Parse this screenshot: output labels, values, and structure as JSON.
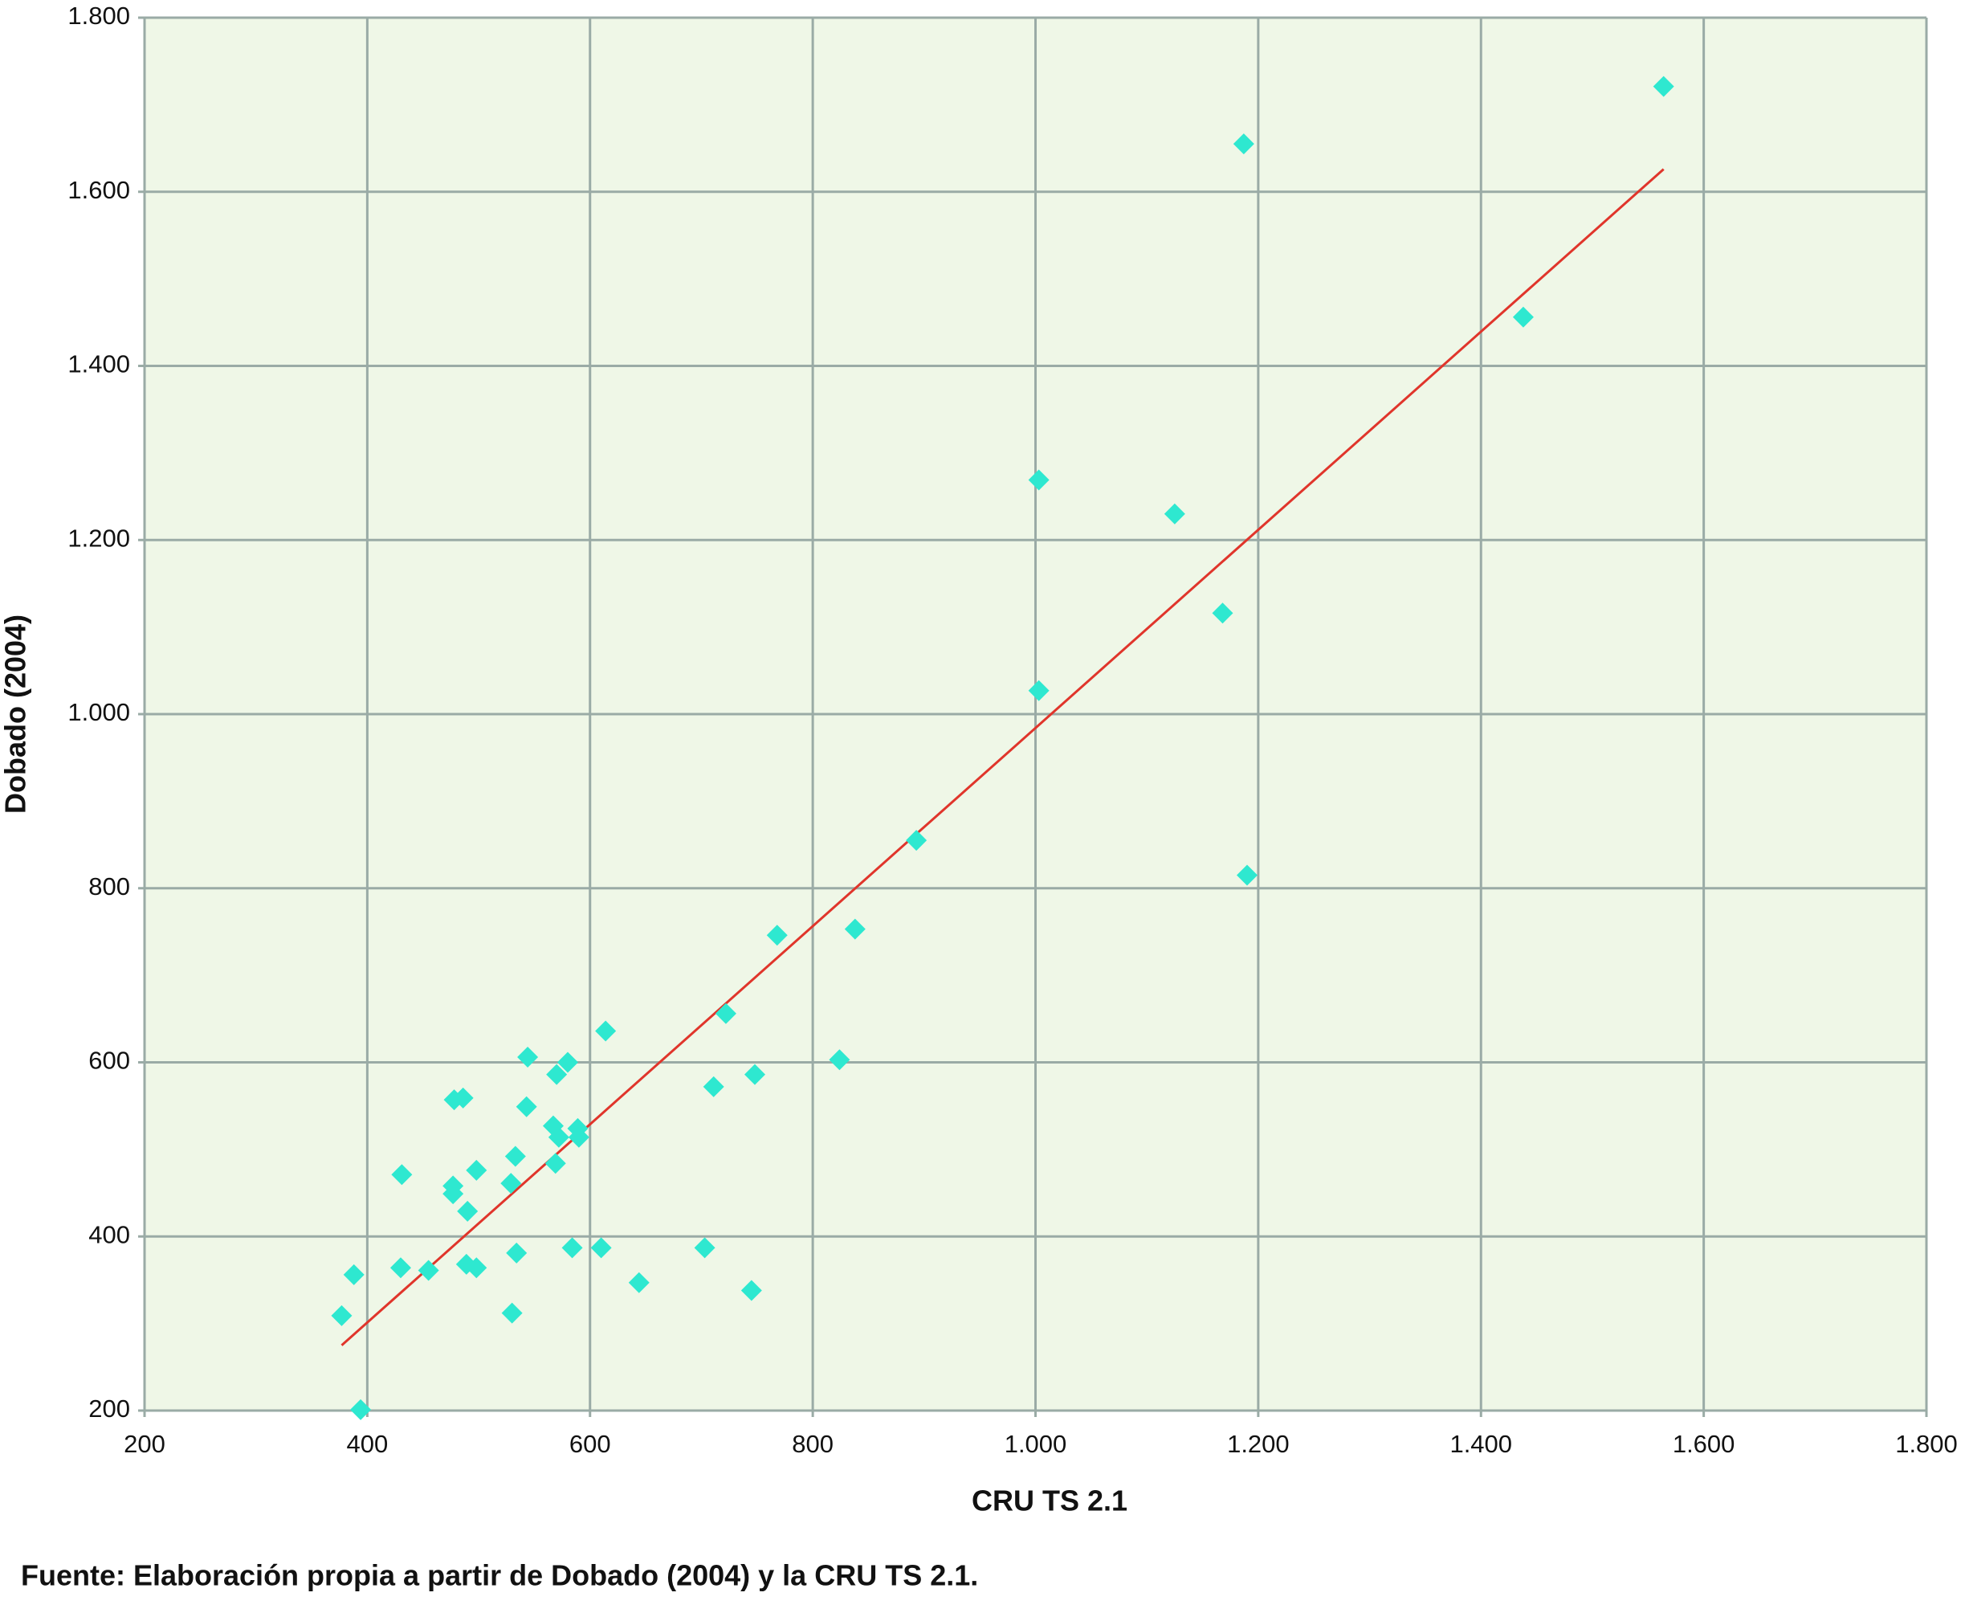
{
  "chart_data": {
    "type": "scatter",
    "x_label": "CRU TS 2.1",
    "y_label": "Dobado (2004)",
    "caption": "Fuente: Elaboración propia a partir de Dobado (2004) y la CRU TS 2.1.",
    "xlim": [
      200,
      1800
    ],
    "ylim": [
      200,
      1800
    ],
    "xticks": [
      200,
      400,
      600,
      800,
      {
        "value": 1000,
        "label": "1.000"
      },
      {
        "value": 1200,
        "label": "1.200"
      },
      {
        "value": 1400,
        "label": "1.400"
      },
      {
        "value": 1600,
        "label": "1.600"
      },
      {
        "value": 1800,
        "label": "1.800"
      }
    ],
    "yticks": [
      200,
      400,
      600,
      800,
      {
        "value": 1000,
        "label": "1.000"
      },
      {
        "value": 1200,
        "label": "1.200"
      },
      {
        "value": 1400,
        "label": "1.400"
      },
      {
        "value": 1600,
        "label": "1.600"
      },
      {
        "value": 1800,
        "label": "1.800"
      }
    ],
    "grid": true,
    "background": "#eff7e7",
    "grid_color": "#9aaba6",
    "color": "#2ee8d0",
    "x": [
      1564,
      1187,
      1438,
      1003,
      1125,
      1168,
      1003,
      893,
      1190,
      768,
      838,
      614,
      722,
      824,
      748,
      711,
      544,
      580,
      570,
      486,
      478,
      543,
      567,
      589,
      572,
      590,
      533,
      569,
      431,
      498,
      477,
      529,
      477,
      490,
      430,
      455,
      489,
      498,
      534,
      584,
      610,
      703,
      644,
      745,
      530,
      377,
      388,
      394
    ],
    "y": [
      1721,
      1655,
      1456,
      1269,
      1230,
      1116,
      1027,
      855,
      815,
      746,
      753,
      636,
      656,
      603,
      586,
      572,
      606,
      600,
      586,
      559,
      557,
      549,
      527,
      524,
      514,
      514,
      492,
      484,
      471,
      476,
      458,
      461,
      449,
      429,
      364,
      361,
      368,
      364,
      381,
      387,
      387,
      387,
      347,
      338,
      312,
      309,
      356,
      201
    ],
    "trendline": {
      "color": "#e0352b",
      "x": [
        377,
        1564
      ],
      "y": [
        275,
        1626
      ]
    }
  }
}
